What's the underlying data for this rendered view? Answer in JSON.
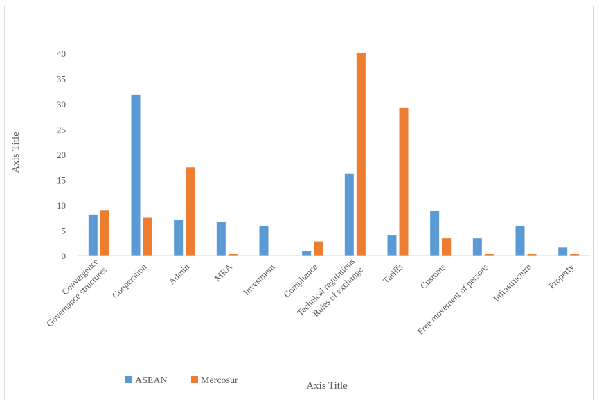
{
  "chart_data": {
    "type": "bar",
    "title": "",
    "xlabel": "Axis Title",
    "ylabel": "Axis Title",
    "ylim": [
      0,
      40
    ],
    "yticks": [
      0,
      5,
      10,
      15,
      20,
      25,
      30,
      35,
      40
    ],
    "grid": false,
    "legend_position": "bottom-left",
    "categories": [
      [
        "Convergence",
        "Governance structures"
      ],
      [
        "Cooperation"
      ],
      [
        "Admin"
      ],
      [
        "MRA"
      ],
      [
        "Investment"
      ],
      [
        "Compliance"
      ],
      [
        "Technical regulations",
        "Rules of exchange"
      ],
      [
        "Tariffs"
      ],
      [
        "Customs"
      ],
      [
        "Free movement of persons"
      ],
      [
        "Infrastructure"
      ],
      [
        "Property"
      ]
    ],
    "series": [
      {
        "name": "ASEAN",
        "color": "#5b9bd5",
        "values": [
          8.1,
          31.8,
          7.0,
          6.7,
          5.9,
          0.9,
          16.2,
          4.1,
          8.9,
          3.4,
          5.9,
          1.6
        ]
      },
      {
        "name": "Mercosur",
        "color": "#ed7d31",
        "values": [
          9.0,
          7.6,
          17.5,
          0.4,
          0,
          2.8,
          40.0,
          29.2,
          3.4,
          0.4,
          0.3,
          0.3
        ]
      }
    ]
  }
}
